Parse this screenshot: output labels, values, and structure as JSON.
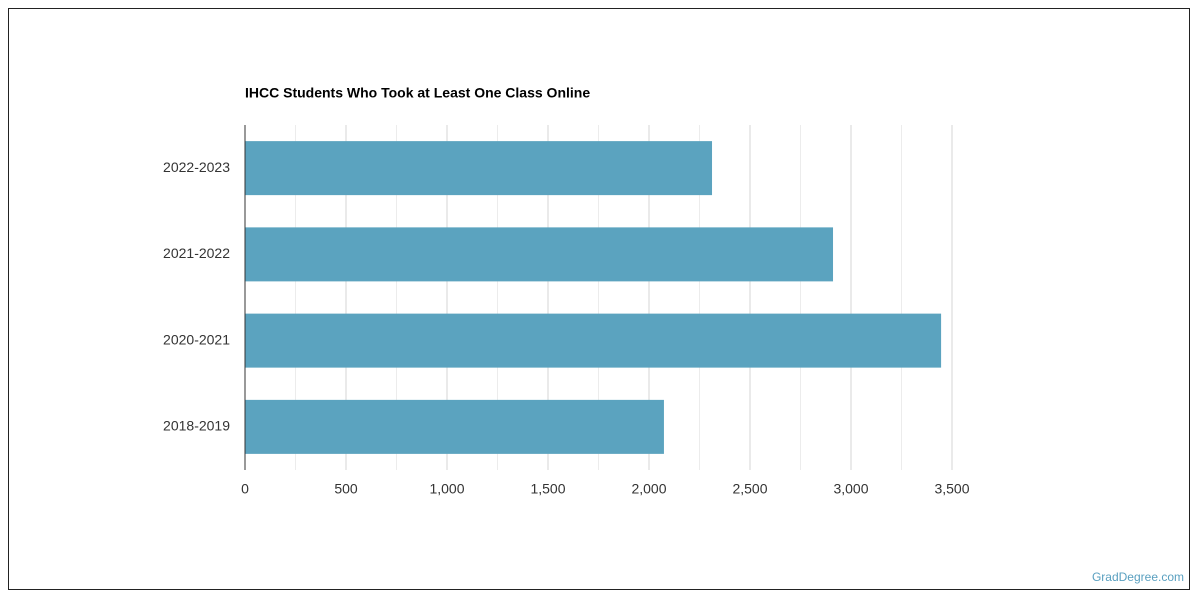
{
  "chart_data": {
    "type": "bar",
    "orientation": "horizontal",
    "title": "IHCC Students Who Took at Least One Class Online",
    "categories": [
      "2022-2023",
      "2021-2022",
      "2020-2021",
      "2018-2019"
    ],
    "values": [
      2312,
      2911,
      3446,
      2074
    ],
    "color": "#5ba3bf",
    "xlim": [
      0,
      3500
    ],
    "xticks": [
      0,
      500,
      {
        "value": 1000,
        "label": "1,000"
      },
      {
        "value": 1500,
        "label": "1,500"
      },
      {
        "value": 2000,
        "label": "2,000"
      },
      {
        "value": 2500,
        "label": "2,500"
      },
      {
        "value": 3000,
        "label": "3,000"
      },
      {
        "value": 3500,
        "label": "3,500"
      }
    ],
    "x_minor_ticks": [
      250,
      750,
      1250,
      1750,
      2250,
      2750,
      3250
    ],
    "grid": true
  },
  "footer": {
    "source": "GradDegree.com"
  }
}
